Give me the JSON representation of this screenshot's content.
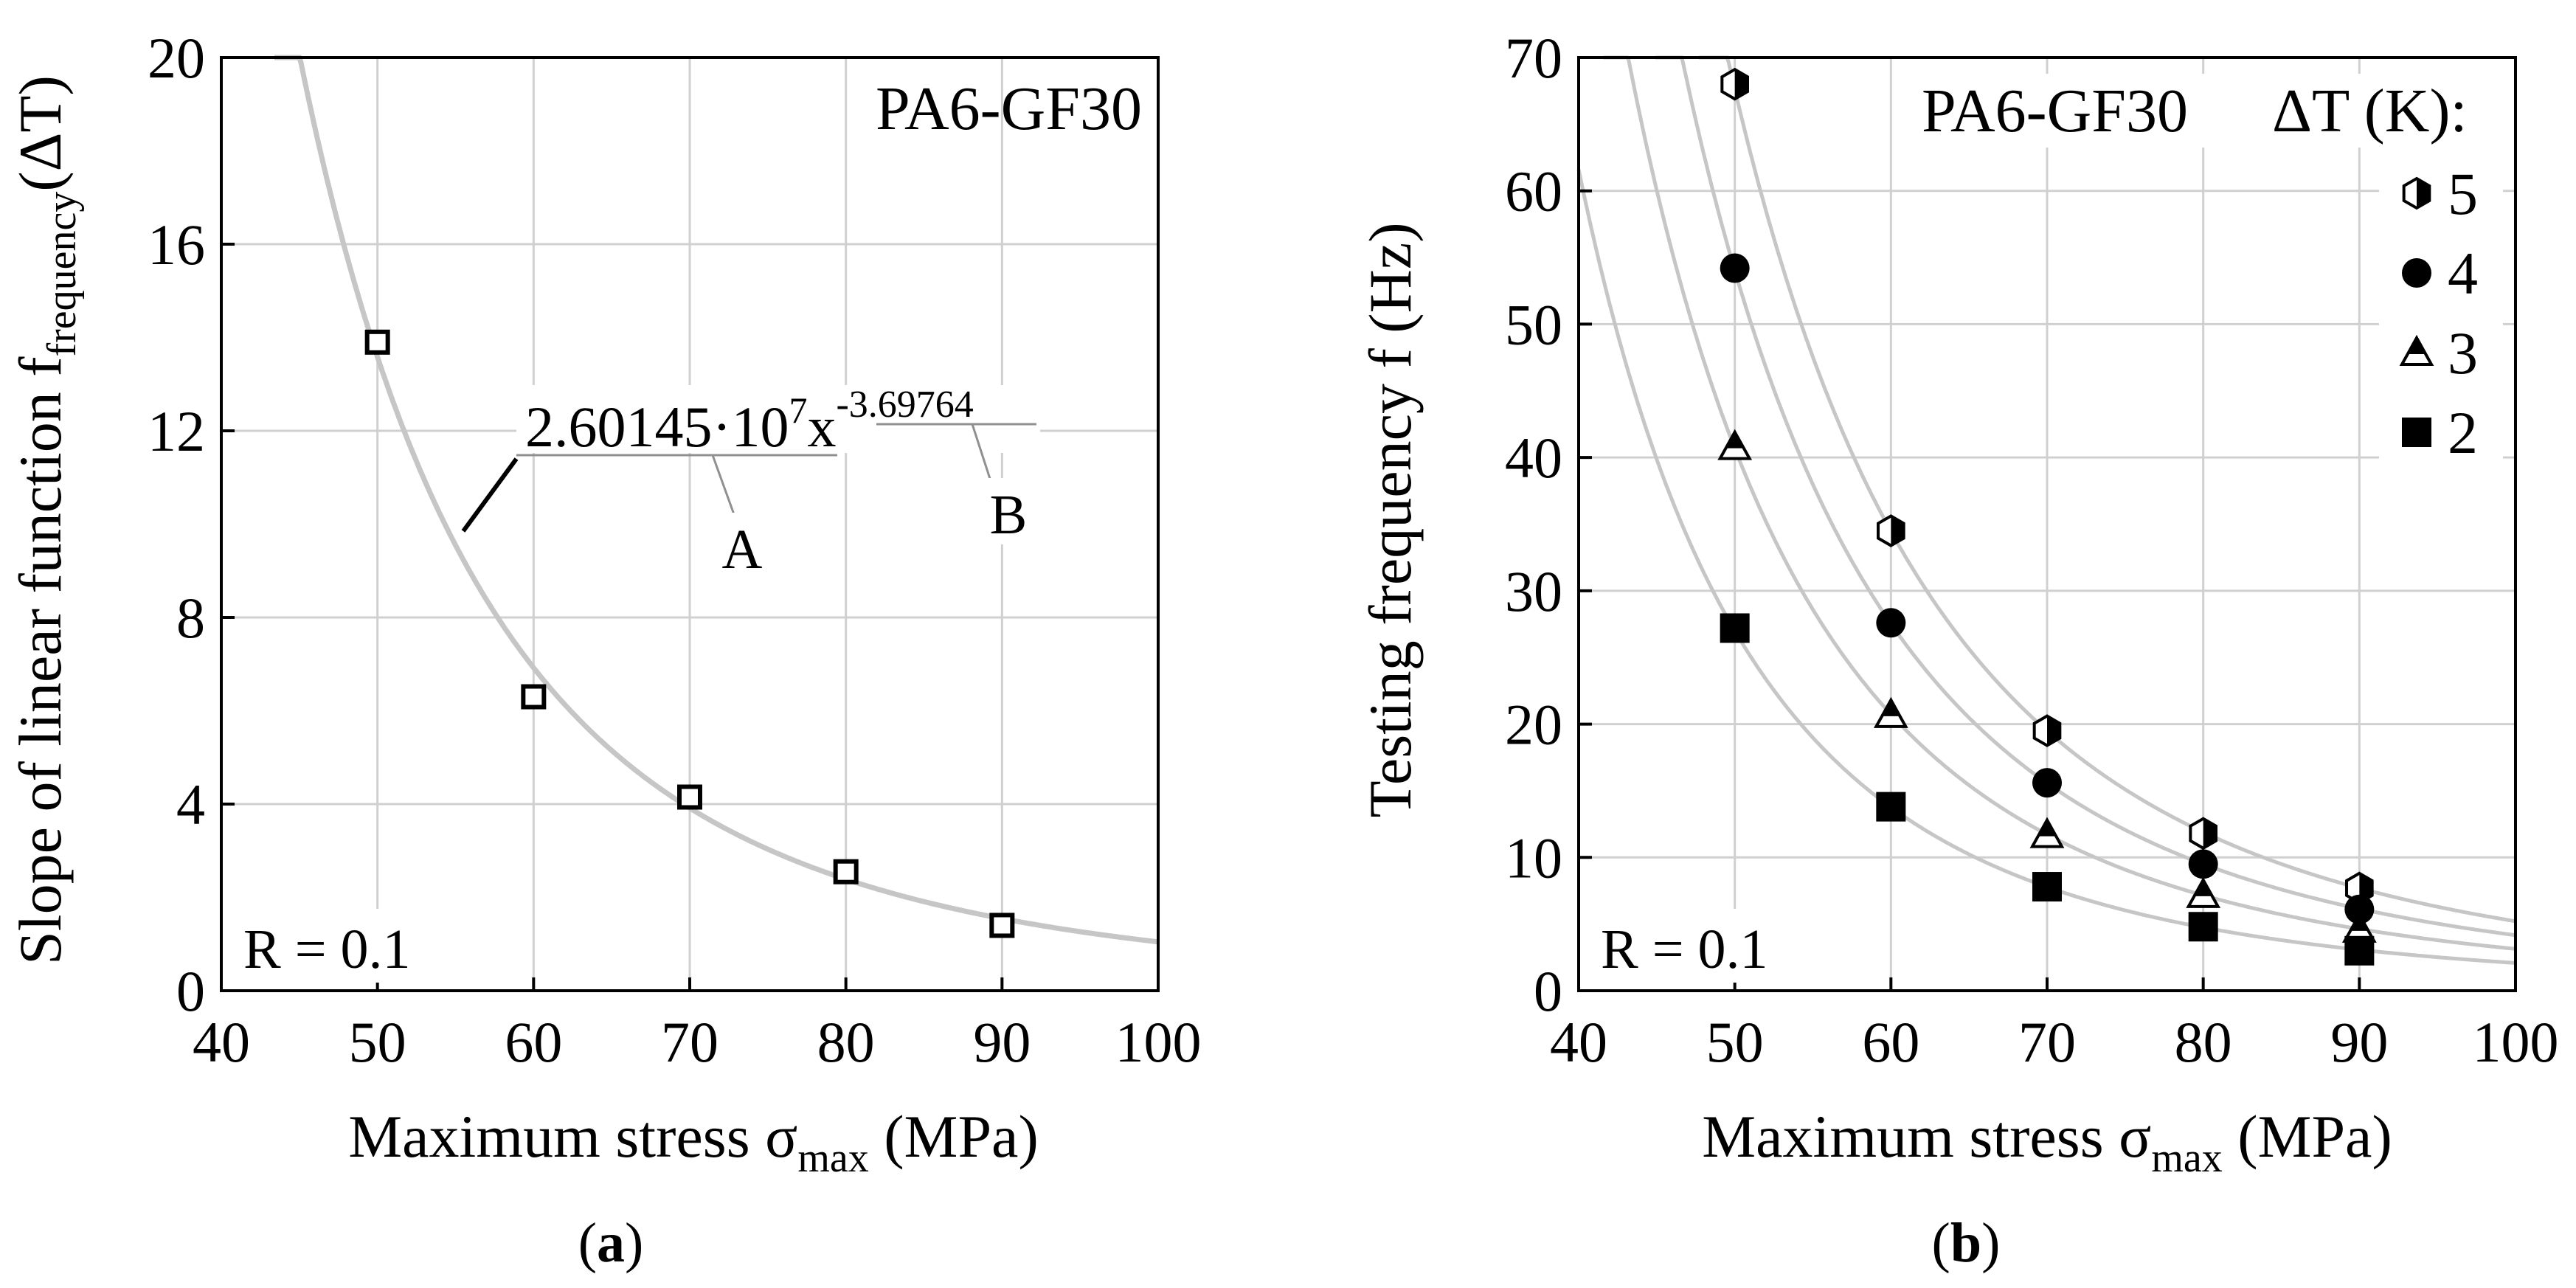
{
  "colors": {
    "background": "#ffffff",
    "grid": "#d0d0d0",
    "axis": "#000000",
    "fit_curve": "#c6c6c6",
    "marker": "#000000"
  },
  "chart_data": [
    {
      "type": "scatter",
      "panel_label": "a",
      "material_label": "PA6-GF30",
      "r_label": "R = 0.1",
      "xlabel": {
        "main": "Maximum stress σ",
        "sub": "max",
        "unit": " (MPa)"
      },
      "ylabel": {
        "main": "Slope of linear function f",
        "sub": "frequency",
        "tail": "(ΔT)"
      },
      "xlim": [
        40,
        100
      ],
      "ylim": [
        0,
        20
      ],
      "xticks": [
        "40",
        "50",
        "60",
        "70",
        "80",
        "90",
        "100"
      ],
      "yticks": [
        "0",
        "4",
        "8",
        "12",
        "16",
        "20"
      ],
      "grid": true,
      "series": [
        {
          "name": "slope",
          "marker": "open-square",
          "x": [
            50,
            60,
            70,
            80,
            90
          ],
          "values": [
            13.9,
            6.3,
            4.15,
            2.55,
            1.4
          ]
        }
      ],
      "fit": {
        "a": 26014500,
        "b": -3.69764
      },
      "equation": {
        "coef": "2.60145·10",
        "exp": "7",
        "var": "x",
        "power": "-3.69764",
        "label_a": "A",
        "label_b": "B"
      }
    },
    {
      "type": "scatter",
      "panel_label": "b",
      "material_label": "PA6-GF30",
      "r_label": "R = 0.1",
      "legend_title": "ΔT (K):",
      "legend_position": "top-right",
      "xlabel": {
        "main": "Maximum stress σ",
        "sub": "max",
        "unit": " (MPa)"
      },
      "ylabel": {
        "main": "Testing frequency f (Hz)"
      },
      "xlim": [
        40,
        100
      ],
      "ylim": [
        0,
        70
      ],
      "xticks": [
        "40",
        "50",
        "60",
        "70",
        "80",
        "90",
        "100"
      ],
      "yticks": [
        "0",
        "10",
        "20",
        "30",
        "40",
        "50",
        "60",
        "70"
      ],
      "grid": true,
      "series": [
        {
          "name": "5",
          "marker": "half-hexagon",
          "x": [
            50,
            60,
            70,
            80,
            90
          ],
          "values": [
            68,
            34.5,
            19.5,
            11.8,
            7.7
          ]
        },
        {
          "name": "4",
          "marker": "circle",
          "x": [
            50,
            60,
            70,
            80,
            90
          ],
          "values": [
            54.2,
            27.6,
            15.6,
            9.5,
            6.1
          ]
        },
        {
          "name": "3",
          "marker": "half-triangle",
          "x": [
            50,
            60,
            70,
            80,
            90
          ],
          "values": [
            40.8,
            20.7,
            11.7,
            7.2,
            4.6
          ]
        },
        {
          "name": "2",
          "marker": "square",
          "x": [
            50,
            60,
            70,
            80,
            90
          ],
          "values": [
            27.2,
            13.8,
            7.8,
            4.8,
            3.0
          ]
        }
      ],
      "fit_multipliers": [
        5,
        4,
        3,
        2
      ]
    }
  ],
  "captions": {
    "a": {
      "open": "(",
      "letter": "a",
      "close": ")"
    },
    "b": {
      "open": "(",
      "letter": "b",
      "close": ")"
    }
  }
}
